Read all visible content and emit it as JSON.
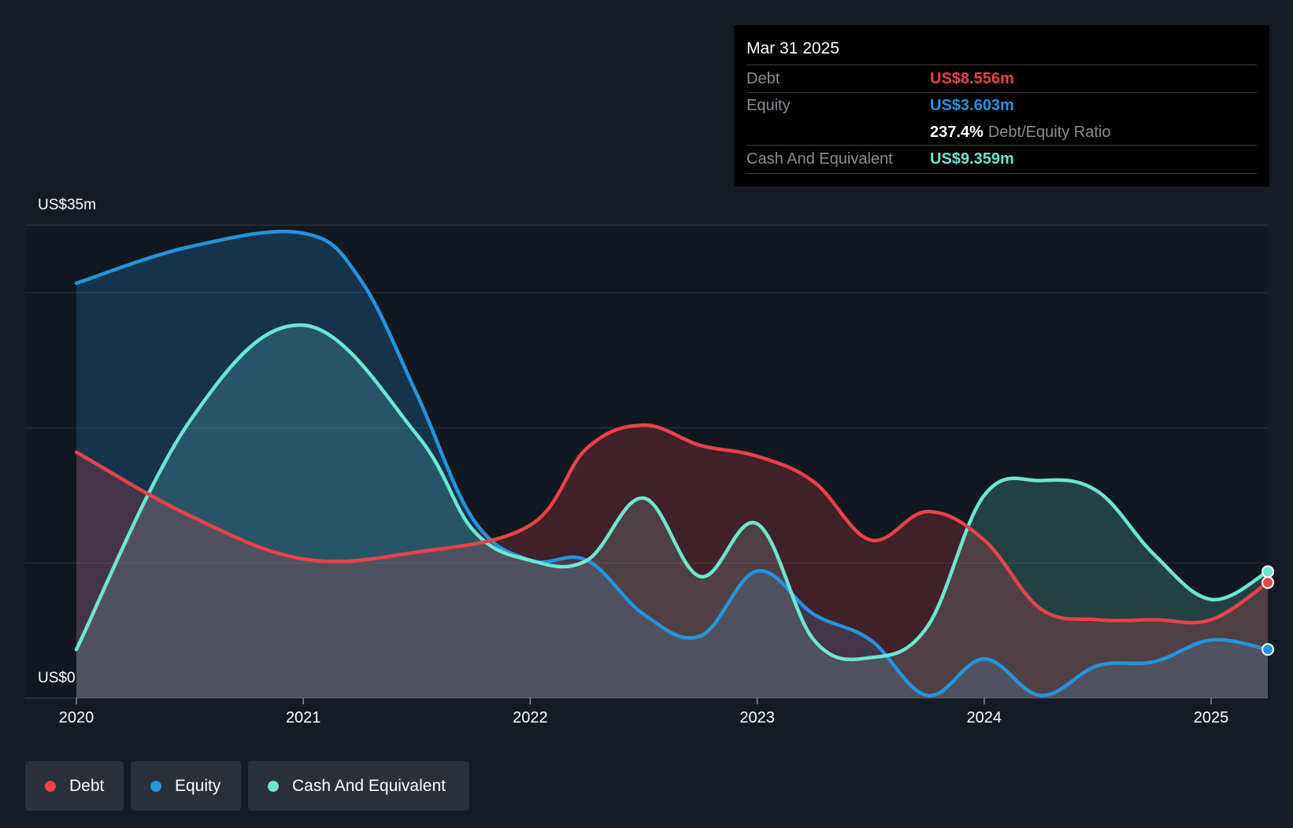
{
  "tooltip": {
    "date": "Mar 31 2025",
    "debt_label": "Debt",
    "debt_value": "US$8.556m",
    "equity_label": "Equity",
    "equity_value": "US$3.603m",
    "ratio_value": "237.4%",
    "ratio_label": "Debt/Equity Ratio",
    "cash_label": "Cash And Equivalent",
    "cash_value": "US$9.359m"
  },
  "legend": [
    {
      "label": "Debt",
      "color": "#e8424a"
    },
    {
      "label": "Equity",
      "color": "#2394df"
    },
    {
      "label": "Cash And Equivalent",
      "color": "#6ee6d0"
    }
  ],
  "chart_data": {
    "type": "area",
    "y_top_label": "US$35m",
    "y_bottom_label": "US$0",
    "ylim": [
      0,
      35
    ],
    "yticks": [
      0,
      10,
      20,
      30,
      35
    ],
    "xlim": [
      2020,
      2025.25
    ],
    "xtick_labels": [
      "2020",
      "2021",
      "2022",
      "2023",
      "2024",
      "2025"
    ],
    "grid": true,
    "colors": {
      "debt": "#e8424a",
      "equity": "#2394df",
      "cash": "#6ee6d0"
    },
    "series": [
      {
        "name": "Debt",
        "color": "#e8424a",
        "points": [
          [
            2020.0,
            18.2
          ],
          [
            2020.5,
            13.5
          ],
          [
            2021.0,
            10.3
          ],
          [
            2021.5,
            10.8
          ],
          [
            2022.0,
            12.8
          ],
          [
            2022.25,
            18.5
          ],
          [
            2022.5,
            20.2
          ],
          [
            2022.75,
            18.7
          ],
          [
            2023.0,
            17.9
          ],
          [
            2023.25,
            16.0
          ],
          [
            2023.5,
            11.7
          ],
          [
            2023.75,
            13.8
          ],
          [
            2024.0,
            11.7
          ],
          [
            2024.25,
            6.6
          ],
          [
            2024.5,
            5.8
          ],
          [
            2024.75,
            5.8
          ],
          [
            2025.0,
            5.8
          ],
          [
            2025.25,
            8.556
          ]
        ]
      },
      {
        "name": "Equity",
        "color": "#2394df",
        "points": [
          [
            2020.0,
            30.7
          ],
          [
            2020.5,
            33.4
          ],
          [
            2021.0,
            34.4
          ],
          [
            2021.25,
            31.0
          ],
          [
            2021.5,
            22.5
          ],
          [
            2021.75,
            13.2
          ],
          [
            2022.0,
            10.2
          ],
          [
            2022.25,
            10.2
          ],
          [
            2022.5,
            6.2
          ],
          [
            2022.75,
            4.6
          ],
          [
            2023.0,
            9.4
          ],
          [
            2023.25,
            6.2
          ],
          [
            2023.5,
            4.3
          ],
          [
            2023.75,
            0.2
          ],
          [
            2024.0,
            2.9
          ],
          [
            2024.25,
            0.2
          ],
          [
            2024.5,
            2.4
          ],
          [
            2024.75,
            2.7
          ],
          [
            2025.0,
            4.3
          ],
          [
            2025.25,
            3.603
          ]
        ]
      },
      {
        "name": "Cash And Equivalent",
        "color": "#6ee6d0",
        "points": [
          [
            2020.0,
            3.6
          ],
          [
            2020.5,
            20.5
          ],
          [
            2021.0,
            27.6
          ],
          [
            2021.5,
            19.5
          ],
          [
            2021.75,
            12.4
          ],
          [
            2022.0,
            10.2
          ],
          [
            2022.25,
            10.2
          ],
          [
            2022.5,
            14.8
          ],
          [
            2022.75,
            9.0
          ],
          [
            2023.0,
            12.9
          ],
          [
            2023.25,
            4.3
          ],
          [
            2023.5,
            3.0
          ],
          [
            2023.75,
            5.3
          ],
          [
            2024.0,
            15.0
          ],
          [
            2024.25,
            16.1
          ],
          [
            2024.5,
            15.3
          ],
          [
            2024.75,
            10.6
          ],
          [
            2025.0,
            7.3
          ],
          [
            2025.25,
            9.359
          ]
        ]
      }
    ],
    "marker_x": 2025.25
  }
}
